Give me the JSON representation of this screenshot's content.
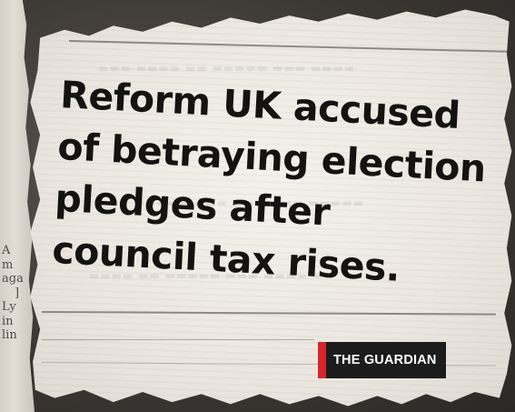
{
  "clipping": {
    "headline_lines": [
      "Reform UK accused",
      "of betraying election",
      "pledges after",
      "council tax rises."
    ],
    "source_badge": "THE GUARDIAN",
    "accent_color": "#d7262a",
    "badge_color": "#1c1c1c",
    "paper_color": "#ebe7e0",
    "ink_color": "#141312"
  },
  "background_paper": {
    "text_fragments": [
      "A",
      "m",
      "aga",
      "]",
      "Ly",
      "in",
      "lin"
    ]
  }
}
